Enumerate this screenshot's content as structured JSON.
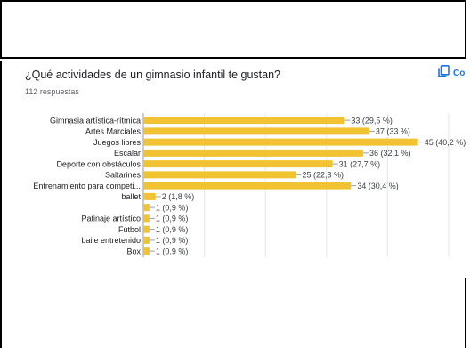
{
  "form": {
    "question": "¿Qué actividades de un gimnasio infantil te gustan?",
    "responses": "112 respuestas",
    "copy_label": "Co"
  },
  "chart_data": {
    "type": "bar",
    "orientation": "horizontal",
    "categories": [
      "Gimnasia artística-rítmica",
      "Artes Marciales",
      "Juegos libres",
      "Escalar",
      "Deporte con obstáculos",
      "Saltarines",
      "Entrenamiento para competi...",
      "ballet",
      "",
      "Patinaje artístico",
      "Fútbol",
      "baile entretenido",
      "Box"
    ],
    "values": [
      33,
      37,
      45,
      36,
      31,
      25,
      34,
      2,
      1,
      1,
      1,
      1,
      1
    ],
    "data_labels": [
      "33 (29,5 %)",
      "37 (33 %)",
      "45 (40,2 %)",
      "36 (32,1 %)",
      "31 (27,7 %)",
      "25 (22,3 %)",
      "34 (30,4 %)",
      "2 (1,8 %)",
      "1 (0,9 %)",
      "1 (0,9 %)",
      "1 (0,9 %)",
      "1 (0,9 %)",
      "1 (0,9 %)"
    ],
    "xticks": [
      0,
      10,
      20,
      30,
      40,
      50
    ],
    "xlim": [
      0,
      50
    ],
    "bar_color": "#f1c232",
    "grid": true
  }
}
